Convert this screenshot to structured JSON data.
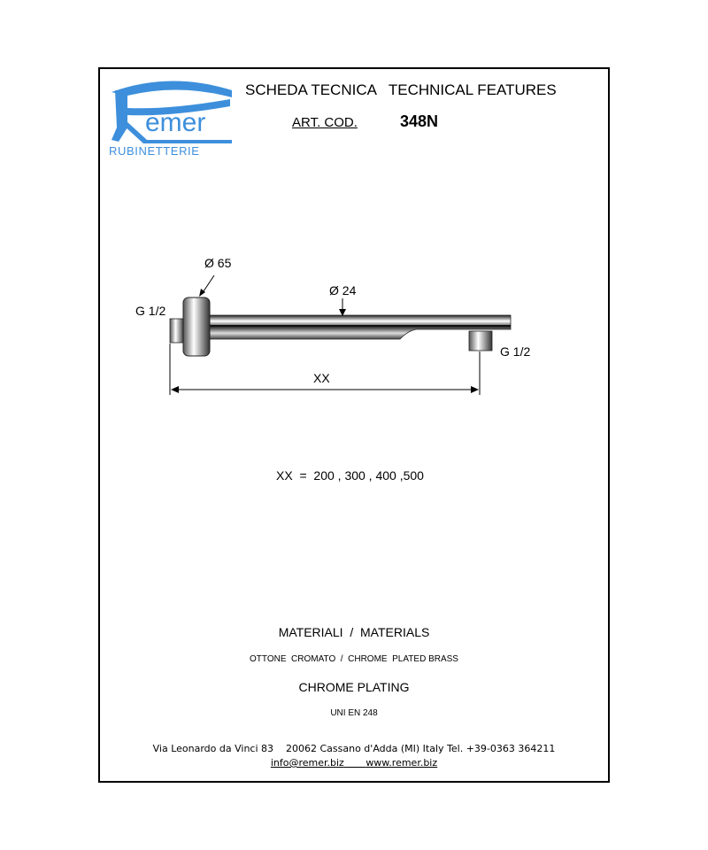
{
  "header": {
    "brand": "Remer",
    "brand_sub": "RUBINETTERIE",
    "brand_color": "#3d8fdc",
    "title": "SCHEDA TECNICA   TECHNICAL FEATURES",
    "art_label": "ART. COD.",
    "art_code": "348N"
  },
  "drawing": {
    "flange_diameter": "Ø 65",
    "pipe_diameter": "Ø 24",
    "inlet_thread": "G 1/2",
    "outlet_thread": "G 1/2",
    "length_label": "XX"
  },
  "sizes": "XX  =  200 , 300 , 400 ,500",
  "materials": {
    "heading": "MATERIALI  /  MATERIALS",
    "material": "OTTONE  CROMATO  /  CHROME  PLATED BRASS",
    "finish": "CHROME PLATING",
    "standard": "UNI EN 248"
  },
  "footer": {
    "address": "Via Leonardo da Vinci 83    20062 Cassano d'Adda (MI) Italy Tel. +39-0363 364211",
    "email": "info@remer.biz",
    "website": "www.remer.biz"
  }
}
